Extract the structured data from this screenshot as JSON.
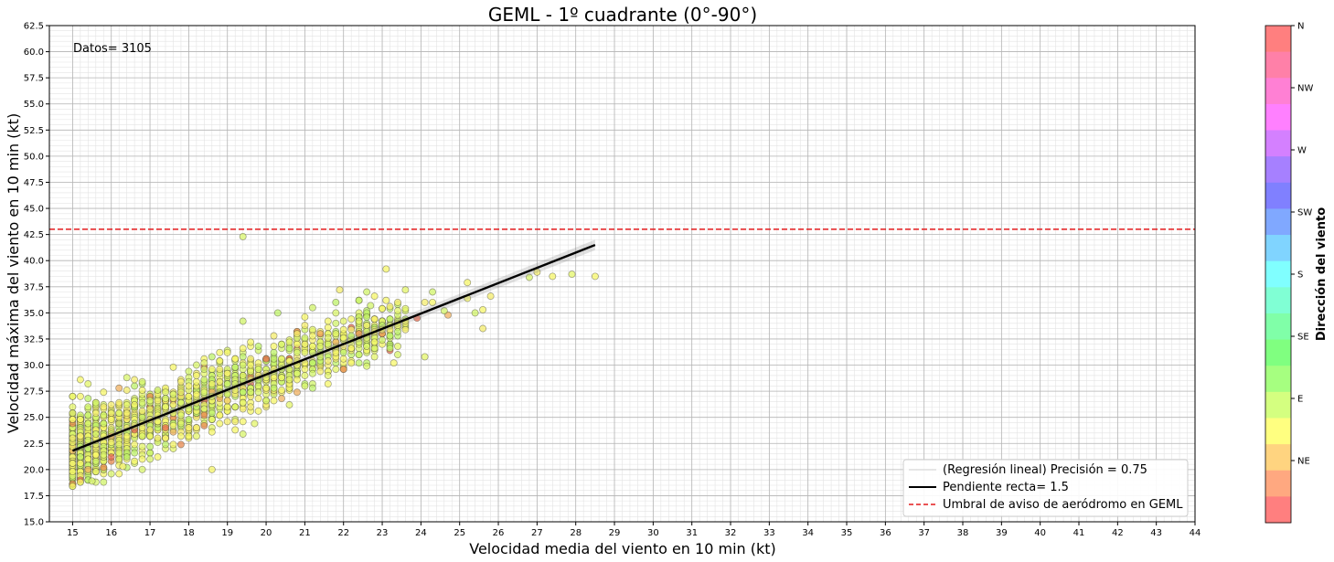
{
  "chart_data": {
    "type": "scatter",
    "title": "GEML - 1º cuadrante (0°-90°)",
    "xlabel": "Velocidad media del viento en 10 min (kt)",
    "ylabel": "Velocidad máxima del viento en 10 min (kt)",
    "xlim": [
      14.4,
      44
    ],
    "ylim": [
      15,
      62.5
    ],
    "x_ticks": [
      15,
      16,
      17,
      18,
      19,
      20,
      21,
      22,
      23,
      24,
      25,
      26,
      27,
      28,
      29,
      30,
      31,
      32,
      33,
      34,
      35,
      36,
      37,
      38,
      39,
      40,
      41,
      42,
      43,
      44
    ],
    "y_ticks": [
      "15.0",
      "17.5",
      "20.0",
      "22.5",
      "25.0",
      "27.5",
      "30.0",
      "32.5",
      "35.0",
      "37.5",
      "40.0",
      "42.5",
      "45.0",
      "47.5",
      "50.0",
      "52.5",
      "55.0",
      "57.5",
      "60.0",
      "62.5"
    ],
    "grid": true,
    "annotation": "Datos= 3105",
    "threshold": {
      "y": 43,
      "color": "#e41a1c",
      "label": "Umbral de aviso de aeródromo en GEML"
    },
    "regression": {
      "x": [
        15,
        28.5
      ],
      "y": [
        21.8,
        41.5
      ],
      "slope_label": "Pendiente recta= 1.5",
      "fit_label": "(Regresión lineal) Precisión = 0.75"
    },
    "legend": {
      "position": "bottom-right",
      "entries": [
        "(Regresión lineal) Precisión = 0.75",
        "Pendiente recta= 1.5",
        "Umbral de aviso de aeródromo en GEML"
      ]
    },
    "colorbar": {
      "label": "Dirección del viento",
      "tick_labels": [
        "NE",
        "E",
        "SE",
        "S",
        "SW",
        "W",
        "NW",
        "N"
      ],
      "colors": [
        "#ff7f7f",
        "#ffa880",
        "#ffd480",
        "#ffff80",
        "#d4ff80",
        "#a6ff80",
        "#80ff80",
        "#80ffa8",
        "#80ffd4",
        "#80ffff",
        "#80d4ff",
        "#80a8ff",
        "#8080ff",
        "#a680ff",
        "#d480ff",
        "#ff80ff",
        "#ff80d4",
        "#ff80a8",
        "#ff7f7f"
      ]
    },
    "outliers": [
      {
        "x": 19.4,
        "y": 42.3
      },
      {
        "x": 23.1,
        "y": 39.2
      },
      {
        "x": 25.2,
        "y": 37.9
      },
      {
        "x": 21.9,
        "y": 37.2
      },
      {
        "x": 27.0,
        "y": 38.9
      },
      {
        "x": 27.4,
        "y": 38.5
      },
      {
        "x": 27.9,
        "y": 38.7
      },
      {
        "x": 28.5,
        "y": 38.5
      },
      {
        "x": 26.8,
        "y": 38.4
      },
      {
        "x": 25.6,
        "y": 33.5
      },
      {
        "x": 25.8,
        "y": 36.6
      },
      {
        "x": 24.3,
        "y": 37.0
      },
      {
        "x": 24.1,
        "y": 36.0
      },
      {
        "x": 24.3,
        "y": 36.0
      },
      {
        "x": 24.7,
        "y": 34.8
      },
      {
        "x": 25.6,
        "y": 35.3
      },
      {
        "x": 25.4,
        "y": 35.0
      },
      {
        "x": 24.1,
        "y": 30.8
      },
      {
        "x": 23.3,
        "y": 30.2
      },
      {
        "x": 19.7,
        "y": 24.4
      },
      {
        "x": 15.5,
        "y": 18.9
      },
      {
        "x": 15.2,
        "y": 28.6
      },
      {
        "x": 16.3,
        "y": 20.3
      },
      {
        "x": 22.7,
        "y": 35.7
      },
      {
        "x": 23.1,
        "y": 36.2
      },
      {
        "x": 21.2,
        "y": 35.5
      },
      {
        "x": 20.3,
        "y": 35.0
      },
      {
        "x": 19.4,
        "y": 34.2
      },
      {
        "x": 24.6,
        "y": 35.2
      },
      {
        "x": 25.2,
        "y": 36.4
      },
      {
        "x": 23.9,
        "y": 34.5
      },
      {
        "x": 22.6,
        "y": 29.9
      }
    ]
  }
}
